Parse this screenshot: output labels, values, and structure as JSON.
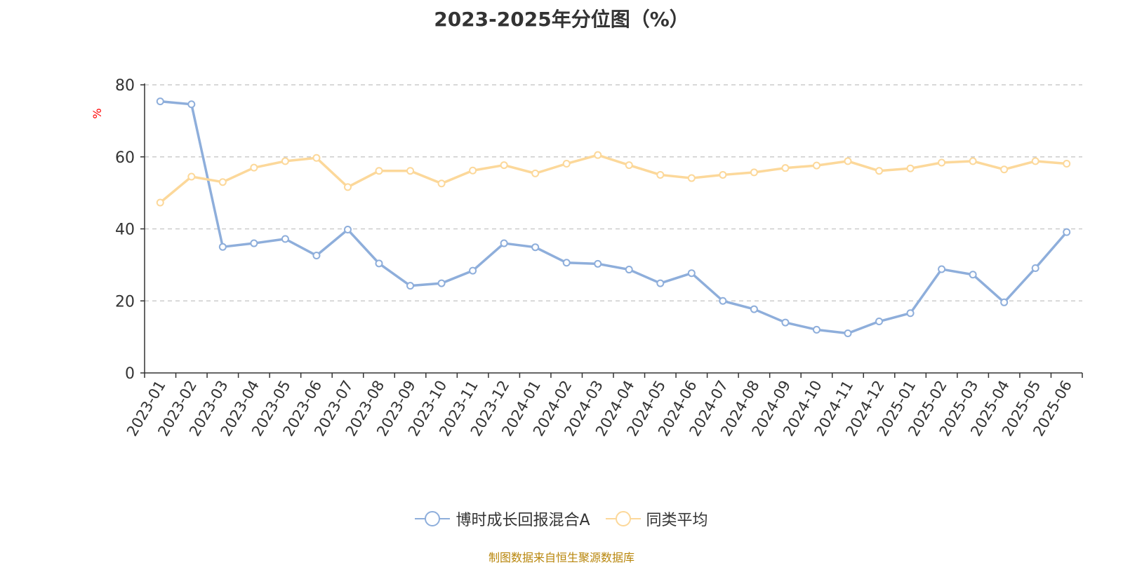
{
  "chart_data": {
    "type": "line",
    "title": "2023-2025年分位图（%）",
    "ylabel": "%",
    "xlabel": "",
    "ylim": [
      0,
      80
    ],
    "yticks": [
      0,
      20,
      40,
      60,
      80
    ],
    "grid": true,
    "legend_position": "bottom",
    "categories": [
      "2023-01",
      "2023-02",
      "2023-03",
      "2023-04",
      "2023-05",
      "2023-06",
      "2023-07",
      "2023-08",
      "2023-09",
      "2023-10",
      "2023-11",
      "2023-12",
      "2024-01",
      "2024-02",
      "2024-03",
      "2024-04",
      "2024-05",
      "2024-06",
      "2024-07",
      "2024-08",
      "2024-09",
      "2024-10",
      "2024-11",
      "2024-12",
      "2025-01",
      "2025-02",
      "2025-03",
      "2025-04",
      "2025-05",
      "2025-06"
    ],
    "series": [
      {
        "name": "博时成长回报混合A",
        "color": "#8eaedb",
        "values": [
          75.4,
          74.6,
          35.0,
          36.0,
          37.2,
          32.6,
          39.8,
          30.4,
          24.2,
          24.9,
          28.4,
          36.0,
          34.9,
          30.6,
          30.3,
          28.7,
          24.9,
          27.7,
          20.0,
          17.7,
          14.0,
          12.0,
          11.0,
          14.3,
          16.6,
          28.8,
          27.3,
          19.6,
          29.1,
          39.1
        ]
      },
      {
        "name": "同类平均",
        "color": "#fcd89a",
        "values": [
          47.3,
          54.5,
          53.0,
          57.0,
          58.8,
          59.7,
          51.6,
          56.1,
          56.1,
          52.6,
          56.2,
          57.7,
          55.4,
          58.1,
          60.5,
          57.7,
          55.0,
          54.1,
          55.0,
          55.7,
          56.9,
          57.6,
          58.8,
          56.1,
          56.8,
          58.4,
          58.8,
          56.5,
          58.8,
          58.1
        ]
      }
    ]
  },
  "source_note": "制图数据来自恒生聚源数据库"
}
